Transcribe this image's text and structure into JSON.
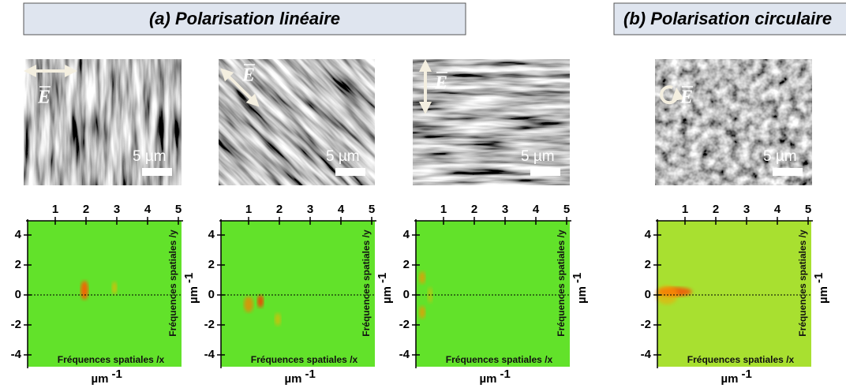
{
  "header": {
    "a": "(a) Polarisation linéaire",
    "b": "(b) Polarisation circulaire"
  },
  "panels": [
    {
      "field": "E",
      "scale_bar": "5 µm",
      "fft": {
        "x_ticks": [
          1,
          2,
          3,
          4,
          5
        ],
        "y_ticks": [
          4,
          2,
          0,
          -2,
          -4
        ],
        "x_label": "Fréquences spatiales /x",
        "y_label": "Fréquences spatiales /y",
        "unit": "µm",
        "unit_exp": "-1"
      }
    },
    {
      "field": "E",
      "scale_bar": "5 µm",
      "fft": {
        "x_ticks": [
          1,
          2,
          3,
          4,
          5
        ],
        "y_ticks": [
          4,
          2,
          0,
          -2,
          -4
        ],
        "x_label": "Fréquences spatiales /x",
        "y_label": "Fréquences spatiales /y",
        "unit": "µm",
        "unit_exp": "-1"
      }
    },
    {
      "field": "E",
      "scale_bar": "5 µm",
      "fft": {
        "x_ticks": [
          1,
          2,
          3,
          4,
          5
        ],
        "y_ticks": [
          4,
          2,
          0,
          -2,
          -4
        ],
        "x_label": "Fréquences spatiales /x",
        "y_label": "Fréquences spatiales /y",
        "unit": "µm",
        "unit_exp": "-1"
      }
    },
    {
      "field": "E",
      "scale_bar": "5 µm",
      "fft": {
        "x_ticks": [
          1,
          2,
          3,
          4,
          5
        ],
        "y_ticks": [
          4,
          2,
          0,
          -2,
          -4
        ],
        "x_label": "Fréquences spatiales /x",
        "y_label": "Fréquences spatiales /y",
        "unit": "µm",
        "unit_exp": "-1"
      }
    }
  ]
}
